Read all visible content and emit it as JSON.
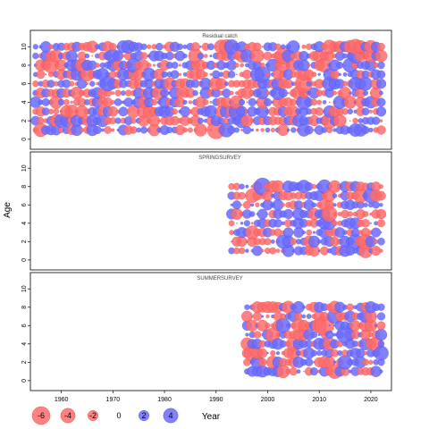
{
  "chart_data": {
    "type": "scatter",
    "subtype": "bubble",
    "ylabel": "Age",
    "xlabel_legend": "Year",
    "x_ticks": [
      1960,
      1970,
      1980,
      1990,
      2000,
      2010,
      2020
    ],
    "y_ticks": [
      0,
      2,
      4,
      6,
      8,
      10
    ],
    "xlim": [
      1954,
      2024
    ],
    "ylim": [
      -0.5,
      10.8
    ],
    "colors": {
      "negative": "#ff6b6b",
      "positive": "#6b6bff",
      "outline_neg": "#e04848",
      "outline_pos": "#4848e0"
    },
    "legend": {
      "values": [
        -6,
        -4,
        -2,
        0,
        2,
        4
      ]
    },
    "panels": [
      {
        "title": "Residual catch",
        "year_start": 1955,
        "year_end": 2022,
        "age_min": 1,
        "age_max": 10
      },
      {
        "title": "SPRINGSURVEY",
        "year_start": 1993,
        "year_end": 2022,
        "age_min": 1,
        "age_max": 8
      },
      {
        "title": "SUMMERSURVEY",
        "year_start": 1996,
        "year_end": 2022,
        "age_min": 1,
        "age_max": 8
      }
    ]
  }
}
